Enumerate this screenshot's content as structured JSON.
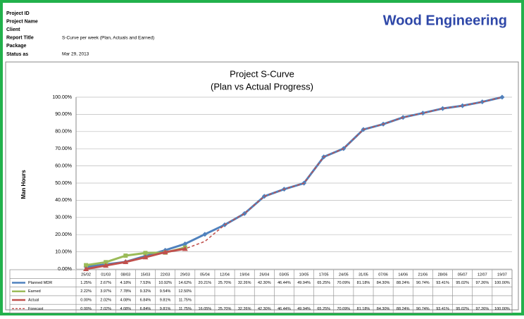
{
  "header": {
    "company": "Wood Engineering",
    "fields": [
      {
        "label": "Project ID",
        "value": null
      },
      {
        "label": "Project Name",
        "value": null
      },
      {
        "label": "Client",
        "value": null
      },
      {
        "label": "Report Title",
        "value": "S-Curve per week (Plan, Actuals and  Earned)"
      },
      {
        "label": "Package",
        "value": null
      },
      {
        "label": "Status as",
        "value": "Mar 29, 2013"
      }
    ]
  },
  "chart_data": {
    "type": "line",
    "title": "Project S-Curve",
    "subtitle": "(Plan vs Actual Progress)",
    "y_label": "Man Hours",
    "categories": [
      "25/02",
      "01/03",
      "08/03",
      "15/03",
      "22/03",
      "29/03",
      "05/04",
      "12/04",
      "19/04",
      "26/04",
      "03/05",
      "10/05",
      "17/05",
      "24/05",
      "31/05",
      "07/06",
      "14/06",
      "21/06",
      "28/06",
      "05/07",
      "12/07",
      "19/07"
    ],
    "ylim": [
      0,
      100
    ],
    "yticks": [
      {
        "value": 0,
        "label": "0.00%"
      },
      {
        "value": 10,
        "label": "10.00%"
      },
      {
        "value": 20,
        "label": "20.00%"
      },
      {
        "value": 30,
        "label": "30.00%"
      },
      {
        "value": 40,
        "label": "40.00%"
      },
      {
        "value": 50,
        "label": "50.00%"
      },
      {
        "value": 60,
        "label": "60.00%"
      },
      {
        "value": 70,
        "label": "70.00%"
      },
      {
        "value": 80,
        "label": "80.00%"
      },
      {
        "value": 90,
        "label": "90.00%"
      },
      {
        "value": 100,
        "label": "100.00%"
      }
    ],
    "grid": true,
    "series": [
      {
        "name": "Planned MDR",
        "color": "#4f81bd",
        "marker": "diamond",
        "dashed": false,
        "values": [
          1.25,
          2.67,
          4.18,
          7.53,
          10.92,
          14.62,
          20.21,
          25.7,
          32.26,
          42.3,
          46.44,
          49.94,
          65.25,
          70.09,
          81.18,
          84.3,
          88.24,
          90.74,
          93.41,
          95.02,
          97.26,
          100.0
        ],
        "value_labels": [
          "1.25%",
          "2.67%",
          "4.18%",
          "7.53%",
          "10.92%",
          "14.62%",
          "20.21%",
          "25.70%",
          "32.26%",
          "42.30%",
          "46.44%",
          "49.94%",
          "65.25%",
          "70.09%",
          "81.18%",
          "84.30%",
          "88.24%",
          "90.74%",
          "93.41%",
          "95.02%",
          "97.26%",
          "100.00%"
        ]
      },
      {
        "name": "Earned",
        "color": "#9bbb59",
        "marker": "square",
        "dashed": false,
        "values": [
          2.22,
          3.97,
          7.78,
          9.32,
          9.54,
          12.5,
          null,
          null,
          null,
          null,
          null,
          null,
          null,
          null,
          null,
          null,
          null,
          null,
          null,
          null,
          null,
          null
        ],
        "value_labels": [
          "2.22%",
          "3.97%",
          "7.78%",
          "9.32%",
          "9.54%",
          "12.50%",
          null,
          null,
          null,
          null,
          null,
          null,
          null,
          null,
          null,
          null,
          null,
          null,
          null,
          null,
          null,
          null
        ]
      },
      {
        "name": "Actual",
        "color": "#c0504d",
        "marker": "triangle",
        "dashed": false,
        "values": [
          0.0,
          2.02,
          4.08,
          6.84,
          9.81,
          11.75,
          null,
          null,
          null,
          null,
          null,
          null,
          null,
          null,
          null,
          null,
          null,
          null,
          null,
          null,
          null,
          null
        ],
        "value_labels": [
          "0.00%",
          "2.02%",
          "4.08%",
          "6.84%",
          "9.81%",
          "11.75%",
          null,
          null,
          null,
          null,
          null,
          null,
          null,
          null,
          null,
          null,
          null,
          null,
          null,
          null,
          null,
          null
        ]
      },
      {
        "name": "Forecast",
        "color": "#c0504d",
        "marker": "none",
        "dashed": true,
        "values": [
          0.0,
          2.02,
          4.08,
          6.84,
          9.81,
          11.75,
          16.05,
          25.7,
          32.26,
          42.3,
          46.44,
          49.94,
          65.25,
          70.09,
          81.18,
          84.3,
          88.24,
          90.74,
          93.41,
          95.02,
          97.26,
          100.0
        ],
        "value_labels": [
          "0.00%",
          "2.02%",
          "4.08%",
          "6.84%",
          "9.81%",
          "11.75%",
          "16.05%",
          "25.70%",
          "32.26%",
          "42.30%",
          "46.44%",
          "49.94%",
          "65.25%",
          "70.09%",
          "81.18%",
          "84.30%",
          "88.24%",
          "90.74%",
          "93.41%",
          "95.02%",
          "97.26%",
          "100.00%"
        ]
      }
    ]
  }
}
